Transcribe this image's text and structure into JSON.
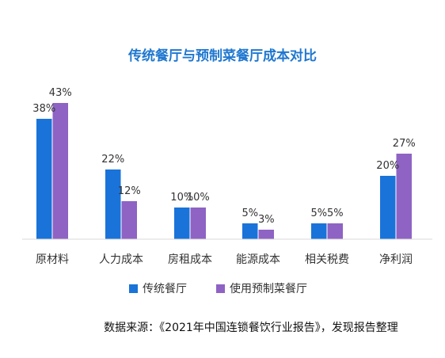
{
  "chart_data": {
    "type": "bar",
    "title": "传统餐厅与预制菜餐厅成本对比",
    "categories": [
      "原材料",
      "人力成本",
      "房租成本",
      "能源成本",
      "相关税费",
      "净利润"
    ],
    "series": [
      {
        "name": "传统餐厅",
        "values": [
          38,
          22,
          10,
          5,
          5,
          20
        ],
        "labels": [
          "38%",
          "22%",
          "10%",
          "5%",
          "5%",
          "20%"
        ]
      },
      {
        "name": "使用预制菜餐厅",
        "values": [
          43,
          12,
          10,
          3,
          5,
          27
        ],
        "labels": [
          "43%",
          "12%",
          "10%",
          "3%",
          "5%",
          "27%"
        ]
      }
    ],
    "unit": "%",
    "grid": false,
    "legend_position": "bottom-center",
    "ylim": [
      0,
      43
    ]
  },
  "colors": {
    "title": "#1f77d0",
    "series": [
      "#1a73d9",
      "#8e63c4"
    ],
    "axis": "#d9d9d9",
    "text": "#333333"
  },
  "source_note": "数据来源：《2021年中国连锁餐饮行业报告》，发现报告整理"
}
